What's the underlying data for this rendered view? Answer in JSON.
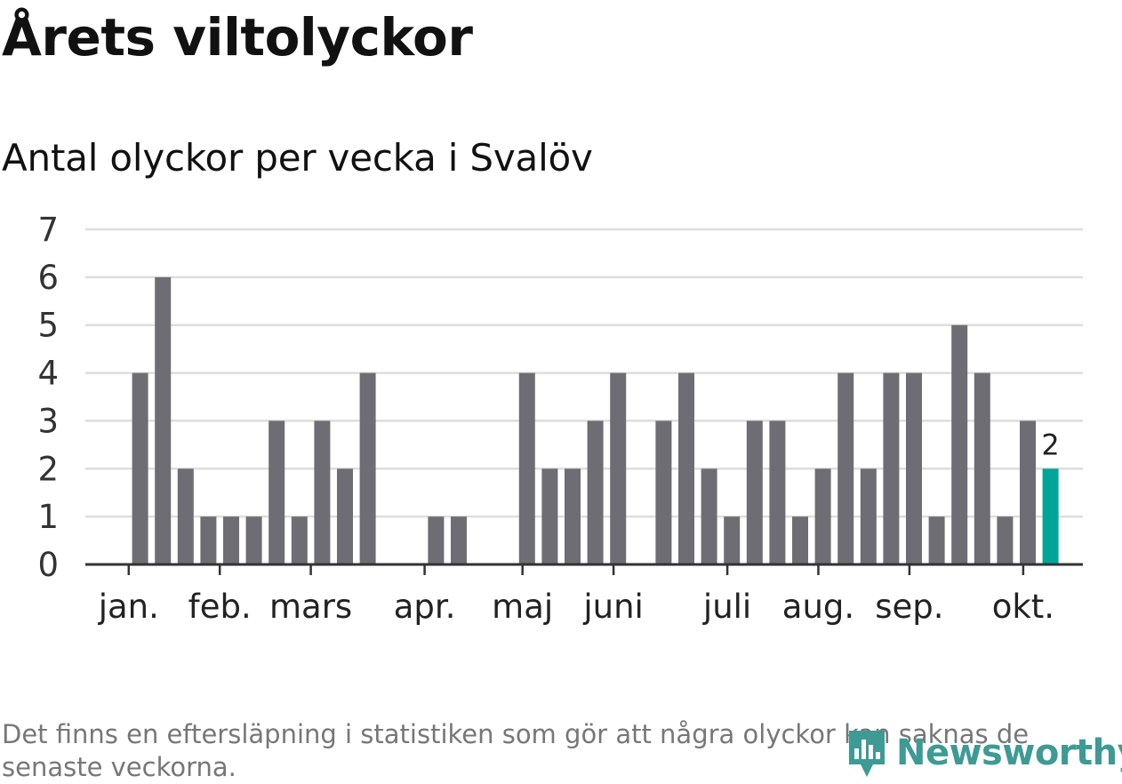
{
  "header": {
    "title": "Årets viltolyckor",
    "subtitle": "Antal olyckor per vecka i Svalöv"
  },
  "footnote": "Det finns en eftersläpning i statistiken som gör att några olyckor kan saknas de senaste veckorna.",
  "logo": {
    "text": "Newsworthy"
  },
  "colors": {
    "bar": "#6e6d73",
    "highlight": "#00a59a",
    "grid": "#dddddd",
    "axis": "#333333",
    "logo": "#3e9a94"
  },
  "chart_data": {
    "type": "bar",
    "title": "Antal olyckor per vecka i Svalöv",
    "xlabel": "",
    "ylabel": "",
    "ylim": [
      0,
      7
    ],
    "yticks": [
      "0",
      "1",
      "2",
      "3",
      "4",
      "5",
      "6",
      "7"
    ],
    "weeks": [
      1,
      2,
      3,
      4,
      5,
      6,
      7,
      8,
      9,
      10,
      11,
      12,
      13,
      14,
      15,
      16,
      17,
      18,
      19,
      20,
      21,
      22,
      23,
      24,
      25,
      26,
      27,
      28,
      29,
      30,
      31,
      32,
      33,
      34,
      35,
      36,
      37,
      38,
      39,
      40,
      41,
      42
    ],
    "values": [
      0,
      4,
      6,
      2,
      1,
      1,
      1,
      3,
      1,
      3,
      2,
      4,
      0,
      0,
      1,
      1,
      0,
      0,
      4,
      2,
      2,
      3,
      4,
      0,
      3,
      4,
      2,
      1,
      3,
      3,
      1,
      2,
      4,
      2,
      4,
      4,
      1,
      5,
      4,
      1,
      3,
      2
    ],
    "highlight_index": 41,
    "highlight_label": "2",
    "month_labels": [
      {
        "label": "jan.",
        "week": 1.5
      },
      {
        "label": "feb.",
        "week": 5.5
      },
      {
        "label": "mars",
        "week": 9.5
      },
      {
        "label": "apr.",
        "week": 14.5
      },
      {
        "label": "maj",
        "week": 18.8
      },
      {
        "label": "juni",
        "week": 22.8
      },
      {
        "label": "juli",
        "week": 27.8
      },
      {
        "label": "aug.",
        "week": 31.8
      },
      {
        "label": "sep.",
        "week": 35.8
      },
      {
        "label": "okt.",
        "week": 40.8
      }
    ]
  }
}
